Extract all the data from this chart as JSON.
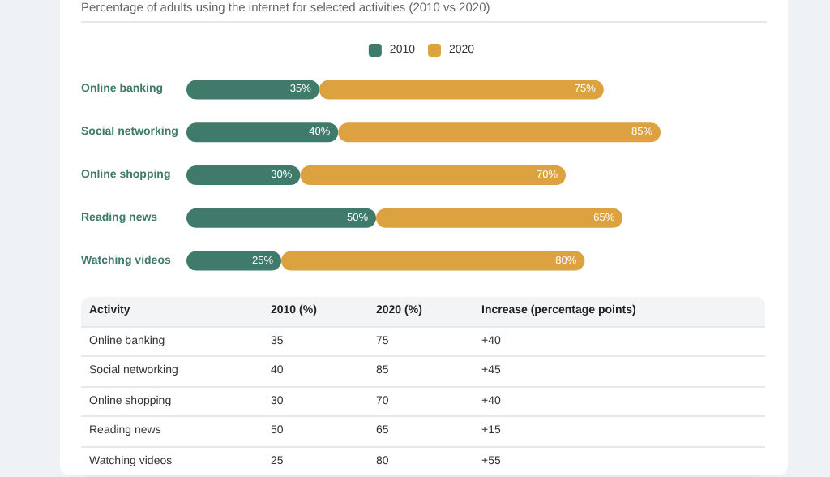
{
  "chart_data": {
    "type": "bar",
    "orientation": "horizontal",
    "stacked": true,
    "title": "Percentage of adults using the internet for selected activities (2010 vs 2020)",
    "categories": [
      "Online banking",
      "Social networking",
      "Online shopping",
      "Reading news",
      "Watching videos"
    ],
    "series": [
      {
        "name": "2010",
        "color": "#3f7a6a",
        "values": [
          35,
          40,
          30,
          50,
          25
        ],
        "value_labels": [
          "35%",
          "40%",
          "30%",
          "50%",
          "25%"
        ]
      },
      {
        "name": "2020",
        "color": "#dba23f",
        "values": [
          75,
          85,
          70,
          65,
          80
        ],
        "value_labels": [
          "75%",
          "85%",
          "70%",
          "65%",
          "80%"
        ]
      }
    ],
    "legend": "top",
    "annotations": [
      "Activity",
      "2010 (%)",
      "2020 (%)",
      "Increase (percentage points)",
      "35",
      "75",
      "+40",
      "40",
      "85",
      "+45",
      "30",
      "70",
      "+40",
      "50",
      "65",
      "+15",
      "25",
      "80",
      "+55"
    ]
  }
}
